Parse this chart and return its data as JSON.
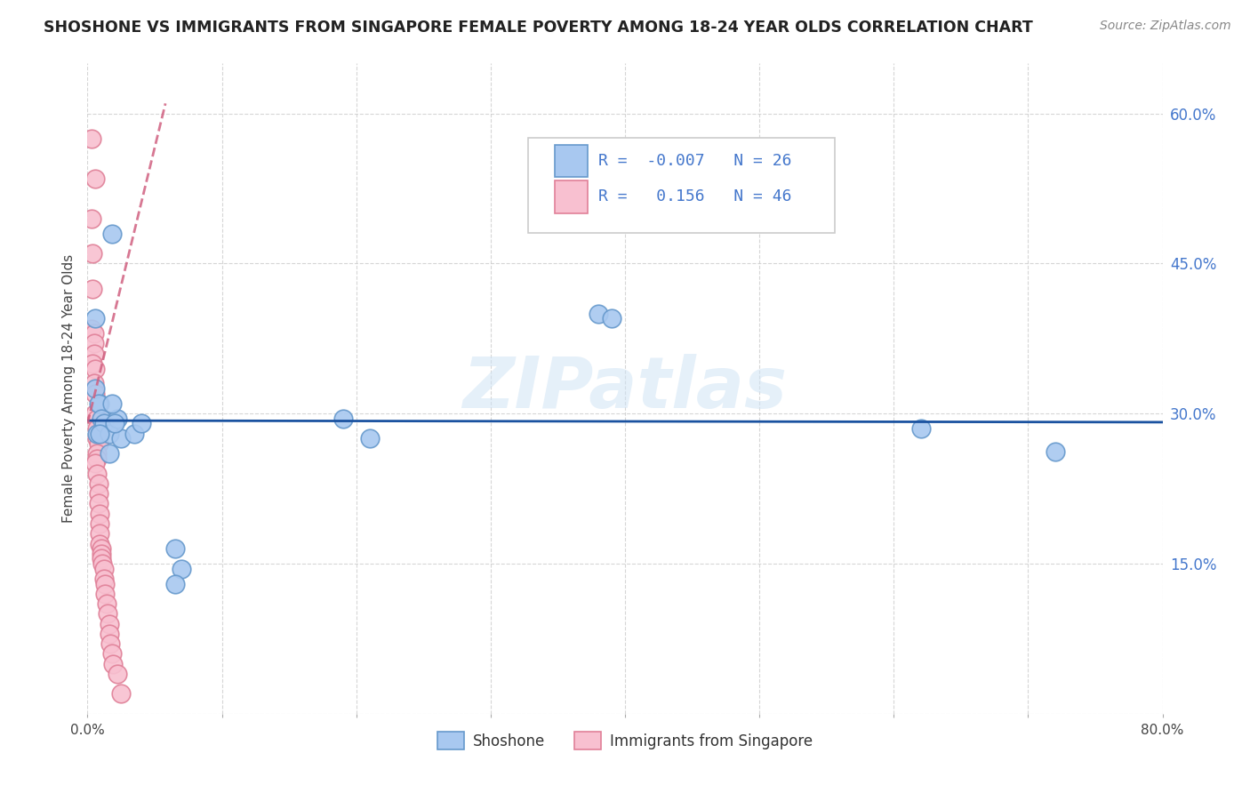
{
  "title": "SHOSHONE VS IMMIGRANTS FROM SINGAPORE FEMALE POVERTY AMONG 18-24 YEAR OLDS CORRELATION CHART",
  "source": "Source: ZipAtlas.com",
  "ylabel": "Female Poverty Among 18-24 Year Olds",
  "xlim": [
    0,
    0.8
  ],
  "ylim": [
    0,
    0.65
  ],
  "yticks": [
    0.0,
    0.15,
    0.3,
    0.45,
    0.6
  ],
  "ytick_labels": [
    "",
    "15.0%",
    "30.0%",
    "45.0%",
    "60.0%"
  ],
  "xtick_positions": [
    0.0,
    0.1,
    0.2,
    0.3,
    0.4,
    0.5,
    0.6,
    0.7,
    0.8
  ],
  "xtick_labels": [
    "0.0%",
    "",
    "",
    "",
    "",
    "",
    "",
    "",
    "80.0%"
  ],
  "background_color": "#ffffff",
  "grid_color": "#cccccc",
  "blue_color": "#a8c8f0",
  "blue_edge_color": "#6699cc",
  "pink_color": "#f8c0d0",
  "pink_edge_color": "#e08098",
  "blue_line_color": "#1a52a0",
  "pink_line_color": "#d06080",
  "R_blue": -0.007,
  "N_blue": 26,
  "R_pink": 0.156,
  "N_pink": 46,
  "legend_label_blue": "Shoshone",
  "legend_label_pink": "Immigrants from Singapore",
  "watermark": "ZIPatlas",
  "blue_scatter_x": [
    0.006,
    0.018,
    0.009,
    0.006,
    0.008,
    0.01,
    0.007,
    0.012,
    0.016,
    0.022,
    0.025,
    0.016,
    0.018,
    0.02,
    0.009,
    0.035,
    0.04,
    0.38,
    0.39,
    0.19,
    0.21,
    0.065,
    0.07,
    0.065,
    0.62,
    0.72
  ],
  "blue_scatter_y": [
    0.395,
    0.48,
    0.31,
    0.325,
    0.31,
    0.295,
    0.28,
    0.29,
    0.28,
    0.295,
    0.275,
    0.26,
    0.31,
    0.29,
    0.28,
    0.28,
    0.29,
    0.4,
    0.395,
    0.295,
    0.275,
    0.165,
    0.145,
    0.13,
    0.285,
    0.262
  ],
  "pink_scatter_x": [
    0.003,
    0.006,
    0.003,
    0.004,
    0.004,
    0.003,
    0.005,
    0.005,
    0.005,
    0.004,
    0.006,
    0.005,
    0.006,
    0.006,
    0.007,
    0.007,
    0.007,
    0.008,
    0.007,
    0.007,
    0.006,
    0.007,
    0.008,
    0.008,
    0.008,
    0.009,
    0.009,
    0.009,
    0.009,
    0.01,
    0.01,
    0.01,
    0.011,
    0.012,
    0.012,
    0.013,
    0.013,
    0.014,
    0.015,
    0.016,
    0.016,
    0.017,
    0.018,
    0.019,
    0.022,
    0.025
  ],
  "pink_scatter_y": [
    0.575,
    0.535,
    0.495,
    0.46,
    0.425,
    0.385,
    0.38,
    0.37,
    0.36,
    0.35,
    0.345,
    0.33,
    0.32,
    0.3,
    0.295,
    0.285,
    0.275,
    0.27,
    0.26,
    0.255,
    0.25,
    0.24,
    0.23,
    0.22,
    0.21,
    0.2,
    0.19,
    0.18,
    0.17,
    0.165,
    0.16,
    0.155,
    0.15,
    0.145,
    0.135,
    0.13,
    0.12,
    0.11,
    0.1,
    0.09,
    0.08,
    0.07,
    0.06,
    0.05,
    0.04,
    0.02
  ],
  "blue_line_y_intercept": 0.293,
  "blue_line_slope": -0.002,
  "pink_line_x_start": 0.0,
  "pink_line_x_end": 0.058,
  "pink_line_y_start": 0.29,
  "pink_line_y_end": 0.61
}
